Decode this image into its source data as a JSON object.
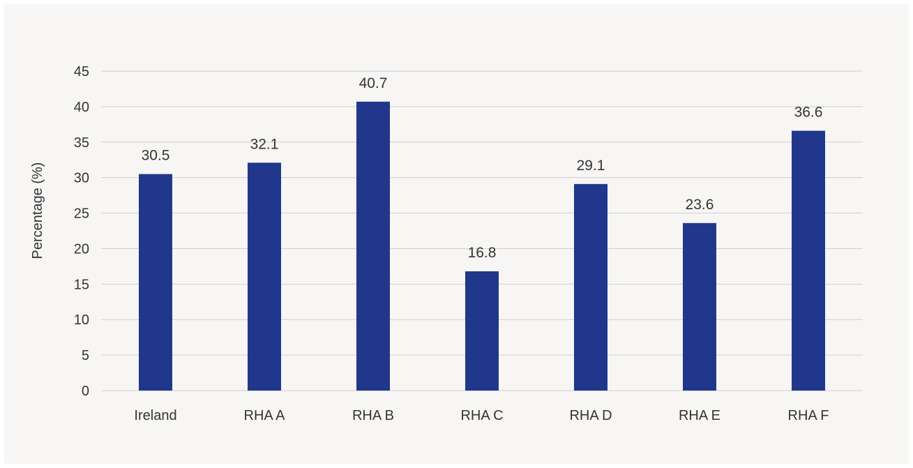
{
  "chart_data": {
    "type": "bar",
    "title": "",
    "xlabel": "",
    "ylabel": "Percentage (%)",
    "categories": [
      "Ireland",
      "RHA A",
      "RHA B",
      "RHA C",
      "RHA D",
      "RHA E",
      "RHA F"
    ],
    "values": [
      30.5,
      32.1,
      40.7,
      16.8,
      29.1,
      23.6,
      36.6
    ],
    "data_labels": [
      "30.5",
      "32.1",
      "40.7",
      "16.8",
      "29.1",
      "23.6",
      "36.6"
    ],
    "ylim": [
      0,
      45
    ],
    "yticks": [
      0,
      5,
      10,
      15,
      20,
      25,
      30,
      35,
      40,
      45
    ],
    "grid": true,
    "legend": "none",
    "colors": {
      "bar": "#21378c",
      "grid": "#cfcfcf",
      "text": "#333333",
      "background": "#f7f6f4"
    }
  }
}
